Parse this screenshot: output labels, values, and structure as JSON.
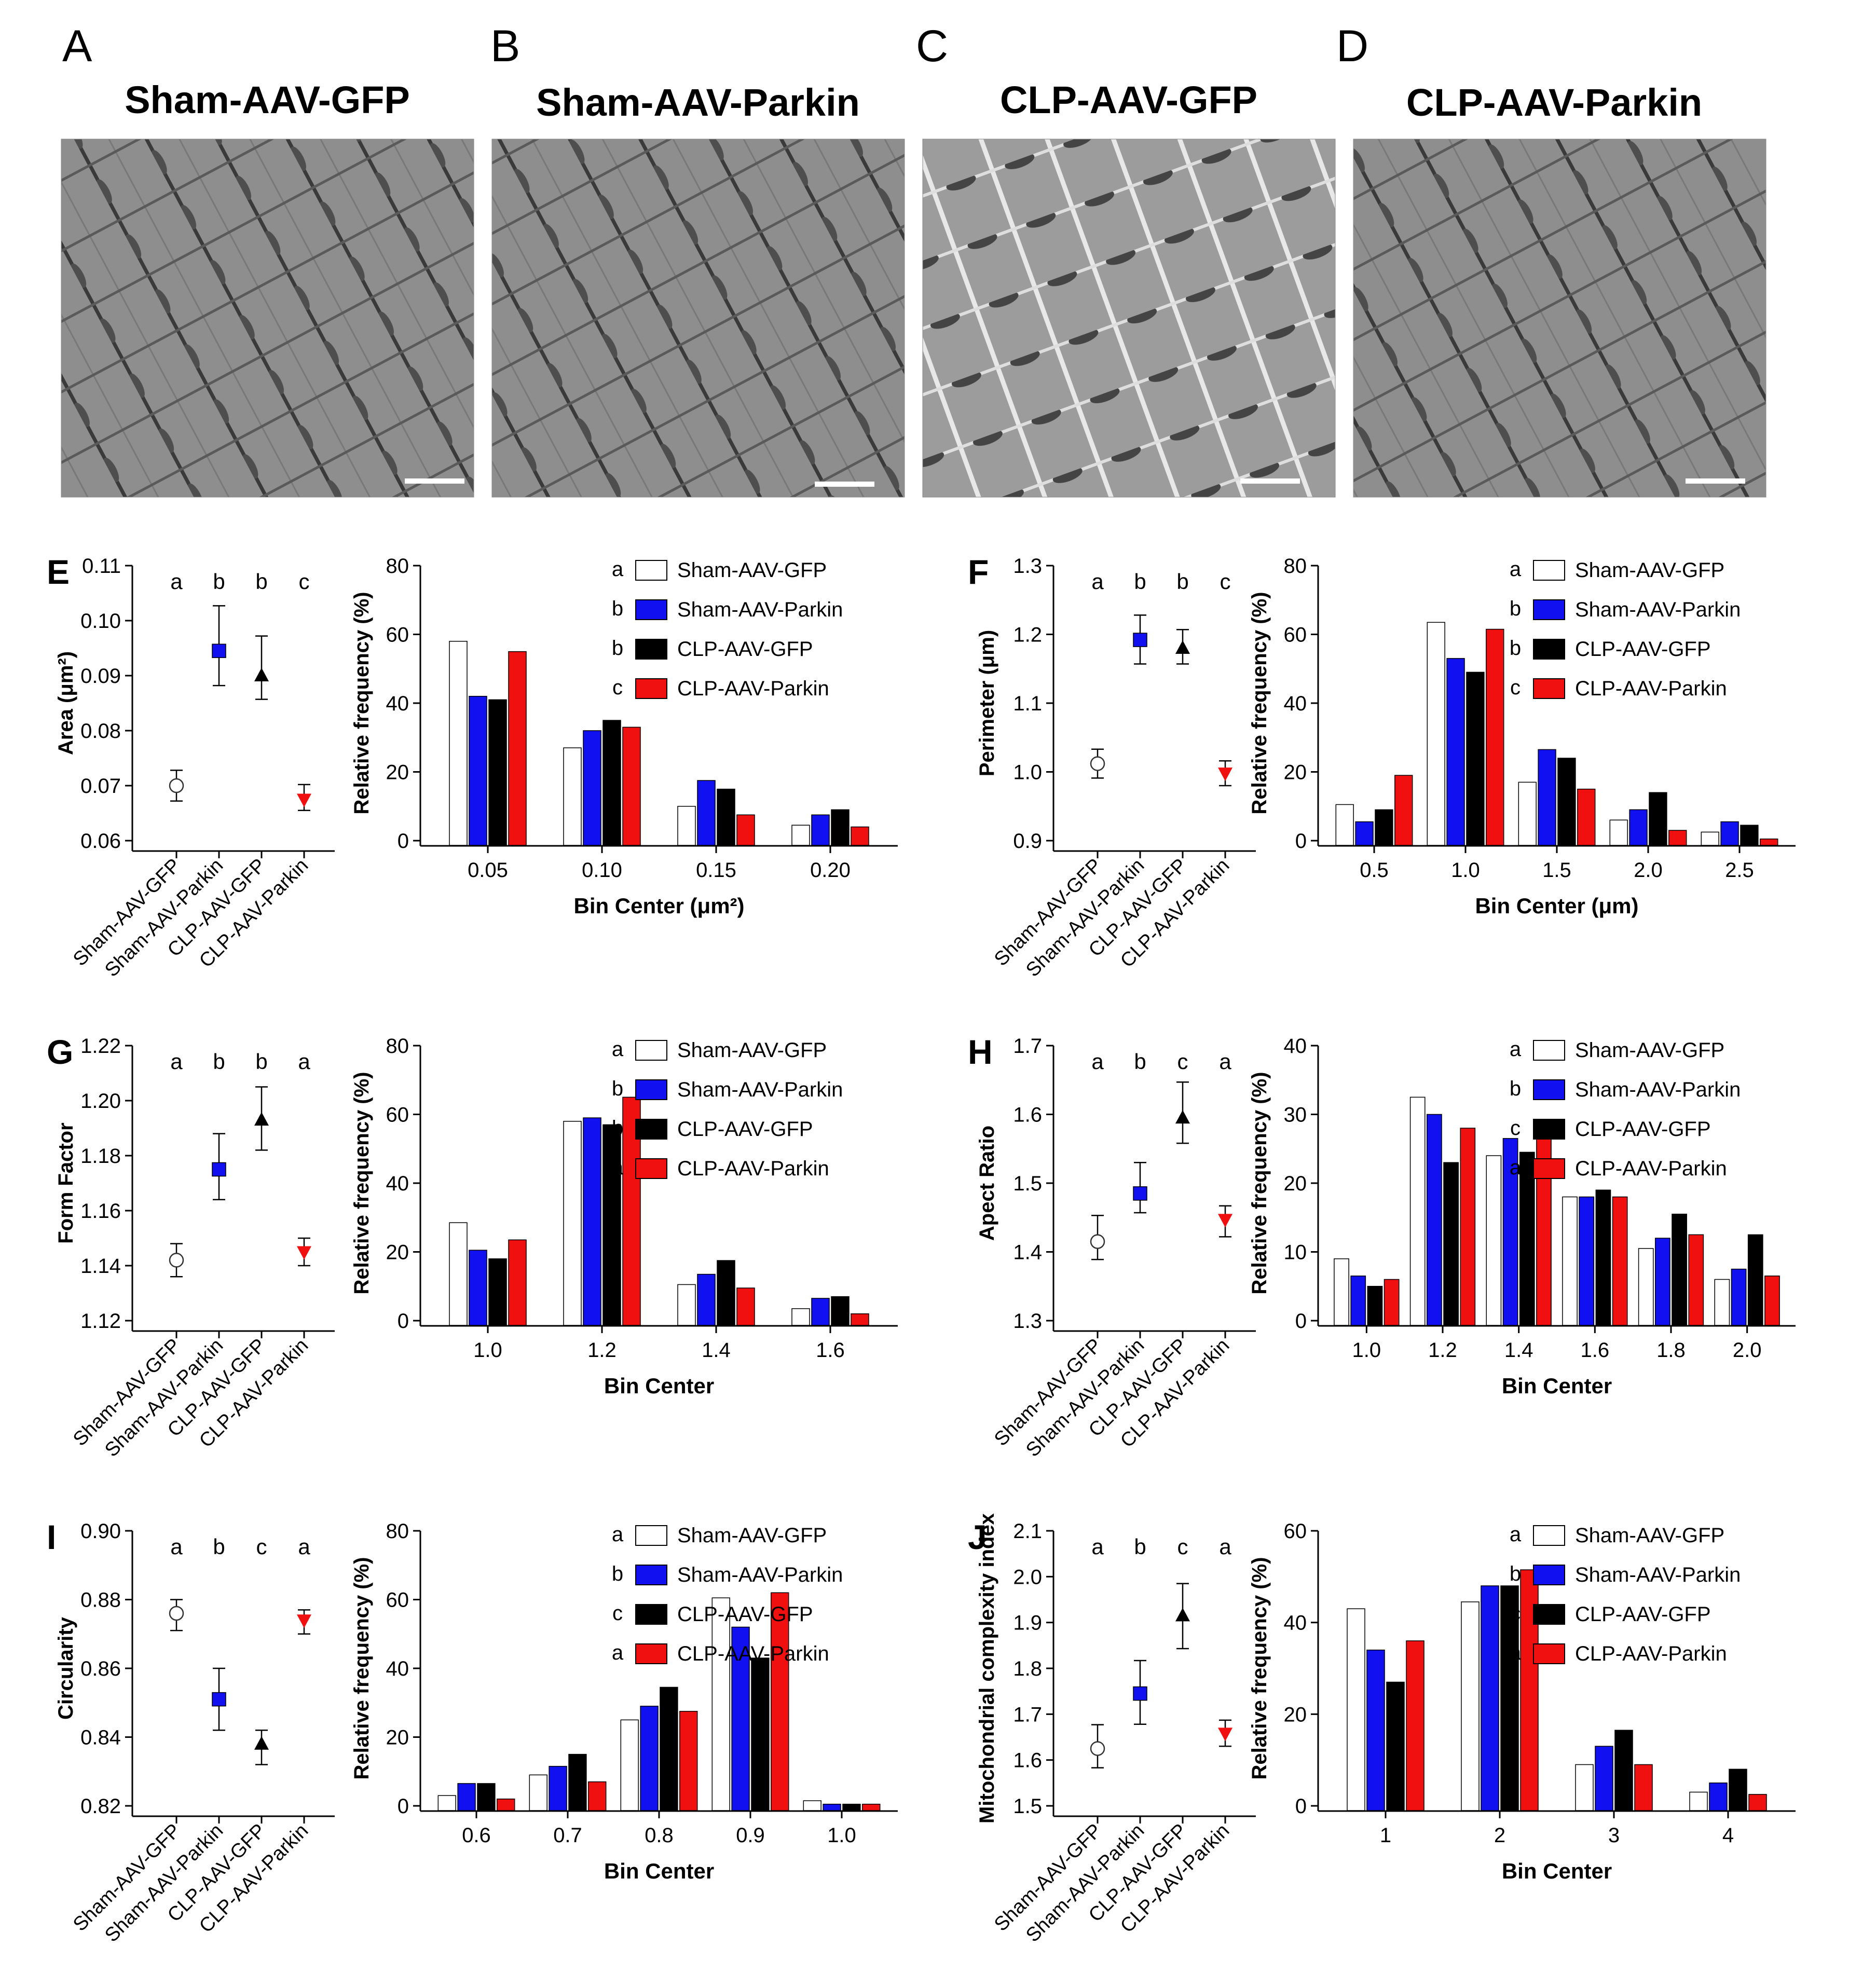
{
  "colors": {
    "sham_gfp": "#ffffff",
    "sham_parkin": "#1010f0",
    "clp_gfp": "#000000",
    "clp_parkin": "#f01010"
  },
  "em_panels": [
    {
      "letter": "A",
      "title": "Sham-AAV-GFP"
    },
    {
      "letter": "B",
      "title": "Sham-AAV-Parkin"
    },
    {
      "letter": "C",
      "title": "CLP-AAV-GFP"
    },
    {
      "letter": "D",
      "title": "CLP-AAV-Parkin"
    }
  ],
  "chart_data": [
    {
      "panel": "E",
      "type": "scatter",
      "ylabel": "Area (μm²)",
      "categories": [
        "Sham-AAV-GFP",
        "Sham-AAV-Parkin",
        "CLP-AAV-GFP",
        "CLP-AAV-Parkin"
      ],
      "means": [
        0.07,
        0.0945,
        0.09,
        0.0675
      ],
      "err_low": [
        0.0672,
        0.0882,
        0.0857,
        0.0655
      ],
      "err_high": [
        0.0728,
        0.1027,
        0.0972,
        0.0702
      ],
      "sig_letters": [
        "a",
        "b",
        "b",
        "c"
      ],
      "ylim": [
        0.06,
        0.11
      ],
      "yticks": [
        "0.06",
        "0.07",
        "0.08",
        "0.09",
        "0.10",
        "0.11"
      ]
    },
    {
      "panel": "E-hist",
      "type": "bar",
      "xlabel": "Bin Center (μm²)",
      "ylabel": "Relative frequency (%)",
      "categories": [
        "0.05",
        "0.10",
        "0.15",
        "0.20"
      ],
      "series": [
        {
          "name": "Sham-AAV-GFP",
          "values": [
            58,
            27,
            10,
            4.5
          ]
        },
        {
          "name": "Sham-AAV-Parkin",
          "values": [
            42,
            32,
            17.5,
            7.5
          ]
        },
        {
          "name": "CLP-AAV-GFP",
          "values": [
            41,
            35,
            15,
            9
          ]
        },
        {
          "name": "CLP-AAV-Parkin",
          "values": [
            55,
            33,
            7.5,
            4
          ]
        }
      ],
      "legend_letters": [
        "a",
        "b",
        "b",
        "c"
      ],
      "ylim": [
        0,
        80
      ],
      "yticks": [
        "0",
        "20",
        "40",
        "60",
        "80"
      ]
    },
    {
      "panel": "F",
      "type": "scatter",
      "ylabel": "Perimeter (μm)",
      "categories": [
        "Sham-AAV-GFP",
        "Sham-AAV-Parkin",
        "CLP-AAV-GFP",
        "CLP-AAV-Parkin"
      ],
      "means": [
        1.012,
        1.192,
        1.18,
        0.998
      ],
      "err_low": [
        0.991,
        1.157,
        1.157,
        0.98
      ],
      "err_high": [
        1.033,
        1.228,
        1.207,
        1.016
      ],
      "sig_letters": [
        "a",
        "b",
        "b",
        "c"
      ],
      "ylim": [
        0.9,
        1.3
      ],
      "yticks": [
        "0.9",
        "1.0",
        "1.1",
        "1.2",
        "1.3"
      ]
    },
    {
      "panel": "F-hist",
      "type": "bar",
      "xlabel": "Bin Center (μm)",
      "ylabel": "Relative frequency (%)",
      "categories": [
        "0.5",
        "1.0",
        "1.5",
        "2.0",
        "2.5"
      ],
      "series": [
        {
          "name": "Sham-AAV-GFP",
          "values": [
            10.5,
            63.5,
            17,
            6,
            2.5
          ]
        },
        {
          "name": "Sham-AAV-Parkin",
          "values": [
            5.5,
            53,
            26.5,
            9,
            5.5
          ]
        },
        {
          "name": "CLP-AAV-GFP",
          "values": [
            9,
            49,
            24,
            14,
            4.5
          ]
        },
        {
          "name": "CLP-AAV-Parkin",
          "values": [
            19,
            61.5,
            15,
            3,
            0.5
          ]
        }
      ],
      "legend_letters": [
        "a",
        "b",
        "b",
        "c"
      ],
      "ylim": [
        0,
        80
      ],
      "yticks": [
        "0",
        "20",
        "40",
        "60",
        "80"
      ]
    },
    {
      "panel": "G",
      "type": "scatter",
      "ylabel": "Form Factor",
      "categories": [
        "Sham-AAV-GFP",
        "Sham-AAV-Parkin",
        "CLP-AAV-GFP",
        "CLP-AAV-Parkin"
      ],
      "means": [
        1.142,
        1.175,
        1.193,
        1.145
      ],
      "err_low": [
        1.136,
        1.164,
        1.182,
        1.14
      ],
      "err_high": [
        1.148,
        1.188,
        1.205,
        1.15
      ],
      "sig_letters": [
        "a",
        "b",
        "b",
        "a"
      ],
      "ylim": [
        1.12,
        1.22
      ],
      "yticks": [
        "1.12",
        "1.14",
        "1.16",
        "1.18",
        "1.20",
        "1.22"
      ]
    },
    {
      "panel": "G-hist",
      "type": "bar",
      "xlabel": "Bin Center",
      "ylabel": "Relative frequency (%)",
      "categories": [
        "1.0",
        "1.2",
        "1.4",
        "1.6"
      ],
      "series": [
        {
          "name": "Sham-AAV-GFP",
          "values": [
            28.5,
            58,
            10.5,
            3.5
          ]
        },
        {
          "name": "Sham-AAV-Parkin",
          "values": [
            20.5,
            59,
            13.5,
            6.5
          ]
        },
        {
          "name": "CLP-AAV-GFP",
          "values": [
            18,
            57,
            17.5,
            7
          ]
        },
        {
          "name": "CLP-AAV-Parkin",
          "values": [
            23.5,
            65,
            9.5,
            2
          ]
        }
      ],
      "legend_letters": [
        "a",
        "b",
        "b",
        "a"
      ],
      "ylim": [
        0,
        80
      ],
      "yticks": [
        "0",
        "20",
        "40",
        "60",
        "80"
      ]
    },
    {
      "panel": "H",
      "type": "scatter",
      "ylabel": "Apect Ratio",
      "categories": [
        "Sham-AAV-GFP",
        "Sham-AAV-Parkin",
        "CLP-AAV-GFP",
        "CLP-AAV-Parkin"
      ],
      "means": [
        1.415,
        1.485,
        1.595,
        1.447
      ],
      "err_low": [
        1.389,
        1.457,
        1.558,
        1.422
      ],
      "err_high": [
        1.453,
        1.53,
        1.647,
        1.467
      ],
      "sig_letters": [
        "a",
        "b",
        "c",
        "a"
      ],
      "ylim": [
        1.3,
        1.7
      ],
      "yticks": [
        "1.3",
        "1.4",
        "1.5",
        "1.6",
        "1.7"
      ]
    },
    {
      "panel": "H-hist",
      "type": "bar",
      "xlabel": "Bin Center",
      "ylabel": "Relative frequency (%)",
      "categories": [
        "1.0",
        "1.2",
        "1.4",
        "1.6",
        "1.8",
        "2.0"
      ],
      "series": [
        {
          "name": "Sham-AAV-GFP",
          "values": [
            9,
            32.5,
            24,
            18,
            10.5,
            6
          ]
        },
        {
          "name": "Sham-AAV-Parkin",
          "values": [
            6.5,
            30,
            26.5,
            18,
            12,
            7.5
          ]
        },
        {
          "name": "CLP-AAV-GFP",
          "values": [
            5,
            23,
            24.5,
            19,
            15.5,
            12.5
          ]
        },
        {
          "name": "CLP-AAV-Parkin",
          "values": [
            6,
            28,
            28.5,
            18,
            12.5,
            6.5
          ]
        }
      ],
      "legend_letters": [
        "a",
        "b",
        "c",
        "a"
      ],
      "ylim": [
        0,
        40
      ],
      "yticks": [
        "0",
        "10",
        "20",
        "30",
        "40"
      ]
    },
    {
      "panel": "I",
      "type": "scatter",
      "ylabel": "Circularity",
      "categories": [
        "Sham-AAV-GFP",
        "Sham-AAV-Parkin",
        "CLP-AAV-GFP",
        "CLP-AAV-Parkin"
      ],
      "means": [
        0.876,
        0.851,
        0.838,
        0.874
      ],
      "err_low": [
        0.871,
        0.842,
        0.832,
        0.87
      ],
      "err_high": [
        0.88,
        0.86,
        0.842,
        0.877
      ],
      "sig_letters": [
        "a",
        "b",
        "c",
        "a"
      ],
      "ylim": [
        0.82,
        0.9
      ],
      "yticks": [
        "0.82",
        "0.84",
        "0.86",
        "0.88",
        "0.90"
      ]
    },
    {
      "panel": "I-hist",
      "type": "bar",
      "xlabel": "Bin Center",
      "ylabel": "Relative frequency (%)",
      "categories": [
        "0.6",
        "0.7",
        "0.8",
        "0.9",
        "1.0"
      ],
      "series": [
        {
          "name": "Sham-AAV-GFP",
          "values": [
            3,
            9,
            25,
            60.5,
            1.5
          ]
        },
        {
          "name": "Sham-AAV-Parkin",
          "values": [
            6.5,
            11.5,
            29,
            52,
            0.5
          ]
        },
        {
          "name": "CLP-AAV-GFP",
          "values": [
            6.5,
            15,
            34.5,
            43,
            0.5
          ]
        },
        {
          "name": "CLP-AAV-Parkin",
          "values": [
            2,
            7,
            27.5,
            62,
            0.5
          ]
        }
      ],
      "legend_letters": [
        "a",
        "b",
        "c",
        "a"
      ],
      "ylim": [
        0,
        80
      ],
      "yticks": [
        "0",
        "20",
        "40",
        "60",
        "80"
      ]
    },
    {
      "panel": "J",
      "type": "scatter",
      "ylabel": "Mitochondrial complexity index",
      "categories": [
        "Sham-AAV-GFP",
        "Sham-AAV-Parkin",
        "CLP-AAV-GFP",
        "CLP-AAV-Parkin"
      ],
      "means": [
        1.625,
        1.745,
        1.915,
        1.658
      ],
      "err_low": [
        1.583,
        1.678,
        1.843,
        1.63
      ],
      "err_high": [
        1.677,
        1.817,
        1.985,
        1.687
      ],
      "sig_letters": [
        "a",
        "b",
        "c",
        "a"
      ],
      "ylim": [
        1.5,
        2.1
      ],
      "yticks": [
        "1.5",
        "1.6",
        "1.7",
        "1.8",
        "1.9",
        "2.0",
        "2.1"
      ]
    },
    {
      "panel": "J-hist",
      "type": "bar",
      "xlabel": "Bin Center",
      "ylabel": "Relative frequency (%)",
      "categories": [
        "1",
        "2",
        "3",
        "4"
      ],
      "series": [
        {
          "name": "Sham-AAV-GFP",
          "values": [
            43,
            44.5,
            9,
            3
          ]
        },
        {
          "name": "Sham-AAV-Parkin",
          "values": [
            34,
            48,
            13,
            5
          ]
        },
        {
          "name": "CLP-AAV-GFP",
          "values": [
            27,
            48,
            16.5,
            8
          ]
        },
        {
          "name": "CLP-AAV-Parkin",
          "values": [
            36,
            51.5,
            9,
            2.5
          ]
        }
      ],
      "legend_letters": [
        "a",
        "b",
        "c",
        "a"
      ],
      "ylim": [
        0,
        60
      ],
      "yticks": [
        "0",
        "20",
        "40",
        "60"
      ]
    }
  ]
}
